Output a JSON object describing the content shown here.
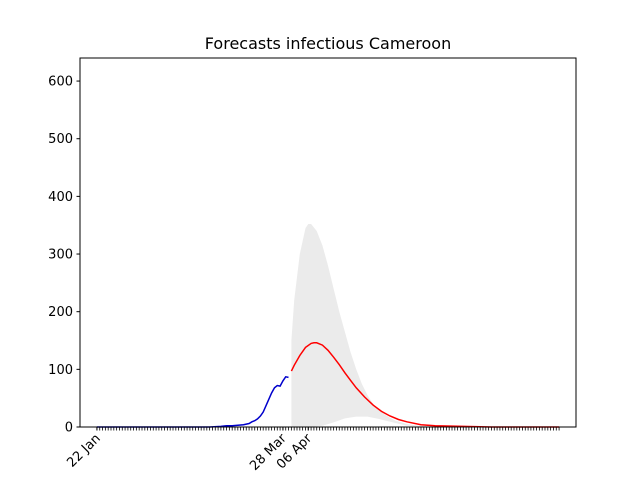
{
  "chart_data": {
    "type": "line",
    "title": "Forecasts infectious Cameroon",
    "xlabel": "",
    "ylabel": "",
    "x_start": "22 Jan",
    "x_tick_labels": [
      {
        "label": "22 Jan",
        "day": 0
      },
      {
        "label": "28 Mar",
        "day": 66
      },
      {
        "label": "06 Apr",
        "day": 75
      }
    ],
    "ylim": [
      0,
      640
    ],
    "y_ticks": [
      0,
      100,
      200,
      300,
      400,
      500,
      600
    ],
    "xlim_days": [
      -6,
      170
    ],
    "minor_tick_days": [
      0,
      164
    ],
    "series": [
      {
        "color": "#0000cc",
        "points": [
          [
            0,
            0
          ],
          [
            30,
            0
          ],
          [
            40,
            0
          ],
          [
            44,
            1
          ],
          [
            46,
            2
          ],
          [
            48,
            2
          ],
          [
            50,
            3
          ],
          [
            52,
            4
          ],
          [
            54,
            6
          ],
          [
            55,
            9
          ],
          [
            56,
            11
          ],
          [
            57,
            14
          ],
          [
            58,
            19
          ],
          [
            59,
            26
          ],
          [
            60,
            37
          ],
          [
            61,
            48
          ],
          [
            62,
            59
          ],
          [
            63,
            68
          ],
          [
            64,
            72
          ],
          [
            65,
            71
          ],
          [
            66,
            80
          ],
          [
            67,
            87
          ],
          [
            68,
            86
          ]
        ]
      },
      {
        "color": "#ff0000",
        "points": [
          [
            69,
            97
          ],
          [
            70,
            107
          ],
          [
            72,
            124
          ],
          [
            74,
            138
          ],
          [
            76,
            145
          ],
          [
            77,
            146
          ],
          [
            78,
            146
          ],
          [
            80,
            142
          ],
          [
            82,
            133
          ],
          [
            84,
            121
          ],
          [
            86,
            108
          ],
          [
            88,
            94
          ],
          [
            90,
            81
          ],
          [
            92,
            68
          ],
          [
            95,
            52
          ],
          [
            98,
            38
          ],
          [
            101,
            27
          ],
          [
            104,
            19
          ],
          [
            107,
            13
          ],
          [
            110,
            9
          ],
          [
            115,
            4
          ],
          [
            120,
            2
          ],
          [
            130,
            1
          ],
          [
            140,
            0
          ],
          [
            164,
            0
          ]
        ]
      }
    ],
    "band": {
      "color": "#ebebeb",
      "upper": [
        [
          69,
          0
        ],
        [
          69,
          150
        ],
        [
          70,
          220
        ],
        [
          72,
          300
        ],
        [
          74,
          345
        ],
        [
          75,
          352
        ],
        [
          76,
          352
        ],
        [
          78,
          340
        ],
        [
          80,
          315
        ],
        [
          82,
          280
        ],
        [
          84,
          240
        ],
        [
          86,
          200
        ],
        [
          88,
          165
        ],
        [
          90,
          130
        ],
        [
          92,
          100
        ],
        [
          94,
          75
        ],
        [
          96,
          55
        ],
        [
          98,
          40
        ],
        [
          100,
          30
        ],
        [
          102,
          22
        ],
        [
          104,
          16
        ],
        [
          106,
          11
        ],
        [
          108,
          8
        ],
        [
          110,
          5
        ],
        [
          114,
          2
        ],
        [
          120,
          1
        ],
        [
          130,
          0
        ],
        [
          164,
          0
        ]
      ],
      "lower": [
        [
          164,
          0
        ],
        [
          120,
          0
        ],
        [
          110,
          2
        ],
        [
          105,
          8
        ],
        [
          100,
          14
        ],
        [
          96,
          18
        ],
        [
          92,
          18
        ],
        [
          88,
          15
        ],
        [
          84,
          8
        ],
        [
          80,
          2
        ],
        [
          75,
          0
        ],
        [
          69,
          0
        ]
      ]
    }
  }
}
